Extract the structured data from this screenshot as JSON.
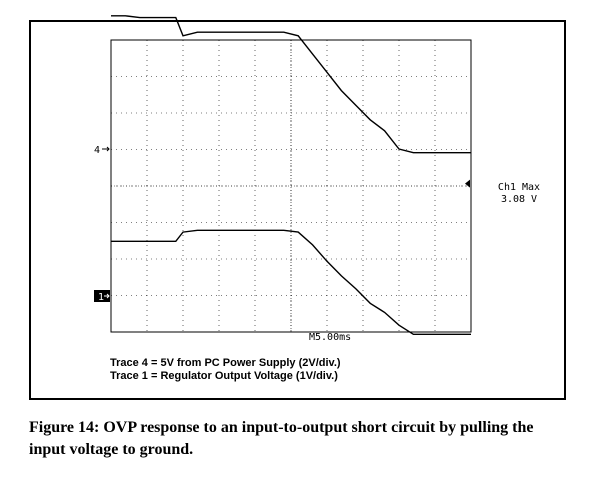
{
  "chart_data": {
    "type": "line",
    "time_base": "M5.00ms",
    "ch1_max": {
      "label": "Ch1 Max",
      "value": "3.08 V"
    },
    "channel_markers": [
      "4",
      "1"
    ],
    "x": [
      0,
      2,
      4,
      6,
      8,
      9,
      10,
      12,
      14,
      16,
      18,
      20,
      22,
      24,
      26,
      28,
      30,
      32,
      34,
      36,
      38,
      40,
      42,
      44,
      46,
      48,
      50
    ],
    "series": [
      {
        "name": "4",
        "values": [
          3.65,
          3.65,
          3.6,
          3.6,
          3.6,
          3.6,
          3.1,
          3.2,
          3.2,
          3.2,
          3.2,
          3.2,
          3.2,
          3.2,
          3.1,
          2.6,
          2.1,
          1.6,
          1.2,
          0.8,
          0.5,
          0.0,
          -0.1,
          -0.1,
          -0.1,
          -0.1,
          -0.1
        ]
      },
      {
        "name": "1",
        "values": [
          1.5,
          1.5,
          1.5,
          1.5,
          1.5,
          1.5,
          1.75,
          1.8,
          1.8,
          1.8,
          1.8,
          1.8,
          1.8,
          1.8,
          1.75,
          1.4,
          0.95,
          0.55,
          0.2,
          -0.2,
          -0.45,
          -0.8,
          -1.05,
          -1.05,
          -1.05,
          -1.05,
          -1.05
        ]
      }
    ]
  },
  "legend": {
    "trace4": "Trace 4 = 5V from PC Power Supply (2V/div.)",
    "trace1": "Trace 1 = Regulator Output Voltage (1V/div.)"
  },
  "caption": "Figure 14: OVP response to an input-to-output short circuit by pulling the input voltage to ground."
}
